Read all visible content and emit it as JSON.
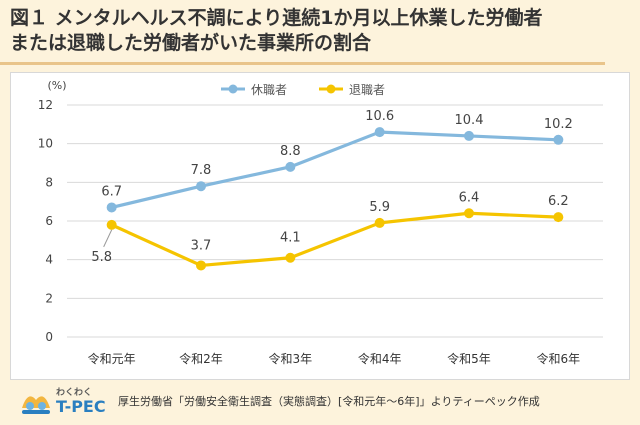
{
  "title": {
    "line1": "図１ メンタルヘルス不調により連続1か月以上休業した労働者",
    "line2": "または退職した労働者がいた事業所の割合"
  },
  "footer": {
    "logo_top": "わくわく",
    "logo_brand": "T-PEC",
    "source": "厚生労働省「労働安全衛生調査（実態調査）[令和元年～6年]」よりティーペック作成"
  },
  "colors": {
    "series1": "#84b8dd",
    "series2": "#f5c400",
    "grid": "#d9d9d9"
  },
  "chart_data": {
    "type": "line",
    "unit_label": "(%)",
    "categories": [
      "令和元年",
      "令和2年",
      "令和3年",
      "令和4年",
      "令和5年",
      "令和6年"
    ],
    "ylim": [
      0,
      12
    ],
    "yticks": [
      0,
      2,
      4,
      6,
      8,
      10,
      12
    ],
    "grid": true,
    "legend_position": "top-center",
    "series": [
      {
        "name": "休職者",
        "values": [
          6.7,
          7.8,
          8.8,
          10.6,
          10.4,
          10.2
        ]
      },
      {
        "name": "退職者",
        "values": [
          5.8,
          3.7,
          4.1,
          5.9,
          6.4,
          6.2
        ]
      }
    ]
  }
}
